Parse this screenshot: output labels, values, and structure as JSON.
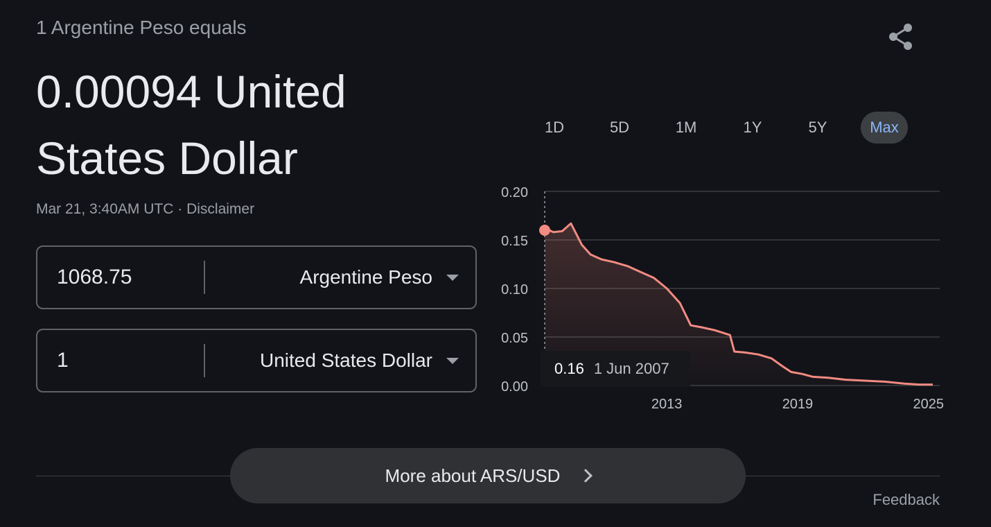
{
  "header": {
    "equals_text": "1 Argentine Peso equals",
    "result_text": "0.00094 United States Dollar",
    "timestamp": "Mar 21, 3:40AM UTC",
    "separator": " · ",
    "disclaimer_label": "Disclaimer"
  },
  "converter": {
    "from": {
      "amount": "1068.75",
      "currency": "Argentine Peso"
    },
    "to": {
      "amount": "1",
      "currency": "United States Dollar"
    }
  },
  "range_tabs": [
    {
      "label": "1D"
    },
    {
      "label": "5D"
    },
    {
      "label": "1M"
    },
    {
      "label": "1Y"
    },
    {
      "label": "5Y"
    },
    {
      "label": "Max",
      "active": true
    }
  ],
  "tooltip": {
    "value": "0.16",
    "date": "1 Jun 2007"
  },
  "more_button_label": "More about ARS/USD",
  "feedback_label": "Feedback",
  "icons": {
    "share": "share-icon",
    "dropdown": "chevron-down-icon",
    "more": "chevron-right-icon"
  },
  "colors": {
    "line": "#f28b82",
    "accent": "#8ab4f8",
    "background": "#121318"
  },
  "chart_data": {
    "type": "area",
    "ylim": [
      0,
      0.2
    ],
    "yticks": [
      "0.20",
      "0.15",
      "0.10",
      "0.05",
      "0.00"
    ],
    "xticks": [
      "2013",
      "2019",
      "2025"
    ],
    "x": [
      2007.4,
      2007.8,
      2008.2,
      2008.6,
      2009.1,
      2009.5,
      2010.0,
      2010.6,
      2011.2,
      2011.8,
      2012.4,
      2013.0,
      2013.6,
      2014.1,
      2014.6,
      2015.2,
      2015.9,
      2016.1,
      2016.6,
      2017.2,
      2017.8,
      2018.3,
      2018.7,
      2019.2,
      2019.7,
      2020.4,
      2021.2,
      2022.1,
      2023.0,
      2023.9,
      2024.6,
      2025.2
    ],
    "values": [
      0.162,
      0.158,
      0.159,
      0.167,
      0.145,
      0.135,
      0.13,
      0.127,
      0.123,
      0.117,
      0.111,
      0.1,
      0.085,
      0.062,
      0.06,
      0.057,
      0.052,
      0.035,
      0.034,
      0.032,
      0.028,
      0.02,
      0.014,
      0.012,
      0.009,
      0.008,
      0.006,
      0.005,
      0.004,
      0.002,
      0.001,
      0.001
    ],
    "highlight": {
      "x": 2007.4,
      "y": 0.16
    }
  }
}
